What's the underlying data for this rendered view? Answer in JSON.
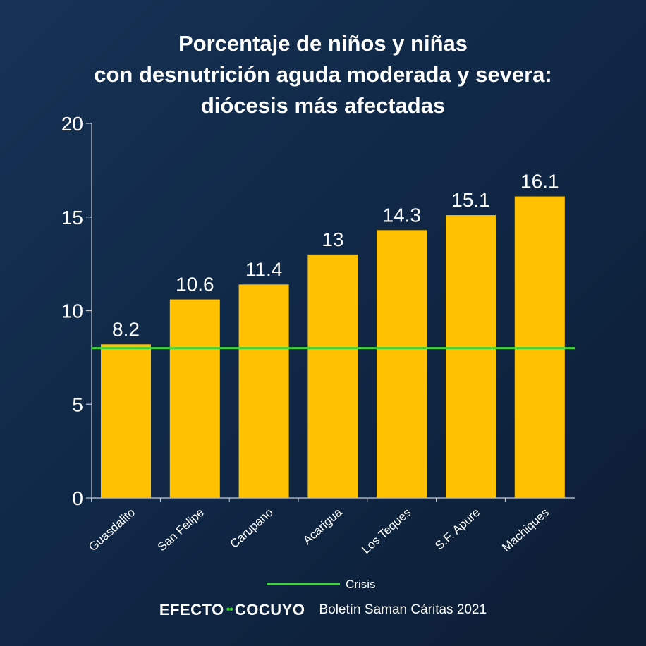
{
  "chart_data": {
    "type": "bar",
    "title_lines": [
      "Porcentaje de niños y niñas",
      "con desnutrición aguda moderada y severa:",
      "diócesis más afectadas"
    ],
    "categories": [
      "Guasdalito",
      "San Felipe",
      "Carupano",
      "Acarigua",
      "Los Teques",
      "S.F. Apure",
      "Machiques"
    ],
    "values": [
      8.2,
      10.6,
      11.4,
      13,
      14.3,
      15.1,
      16.1
    ],
    "data_labels": [
      "8.2",
      "10.6",
      "11.4",
      "13",
      "14.3",
      "15.1",
      "16.1"
    ],
    "ylim": [
      0,
      20
    ],
    "yticks": [
      0,
      5,
      10,
      15,
      20
    ],
    "reference_line": {
      "name": "Crisis",
      "value": 8
    },
    "bar_color": "#ffc100",
    "line_color": "#3fd43a",
    "grid": false,
    "legend_position": "bottom-center"
  },
  "footer": {
    "brand_left": "EFECTO",
    "brand_dots": "••",
    "brand_right": "COCUYO",
    "source": "Boletín Saman Cáritas 2021"
  }
}
